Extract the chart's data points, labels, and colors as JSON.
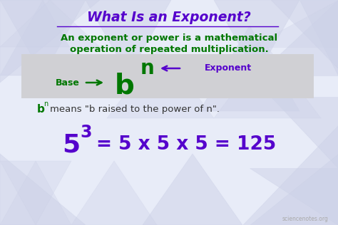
{
  "title": "What Is an Exponent?",
  "title_color": "#5500cc",
  "title_fontsize": 13.5,
  "subtitle_line1": "An exponent or power is a mathematical",
  "subtitle_line2": "operation of repeated multiplication.",
  "subtitle_color": "#007700",
  "subtitle_fontsize": 9.5,
  "box_facecolor": "#d0d0d4",
  "base_label": "Base",
  "exponent_label": "Exponent",
  "arrow_color": "#007700",
  "exponent_arrow_color": "#5500cc",
  "base_color": "#007700",
  "bn_color": "#007700",
  "bn_text_color": "#333333",
  "formula_color": "#5500cc",
  "formula_base": "5",
  "formula_super": "3",
  "formula_rest": "= 5 x 5 x 5 = 125",
  "bg_color": "#e8ecf8",
  "tri_color": "#cdd2e8",
  "watermark": "sciencenotes.org",
  "watermark_color": "#aaaaaa"
}
